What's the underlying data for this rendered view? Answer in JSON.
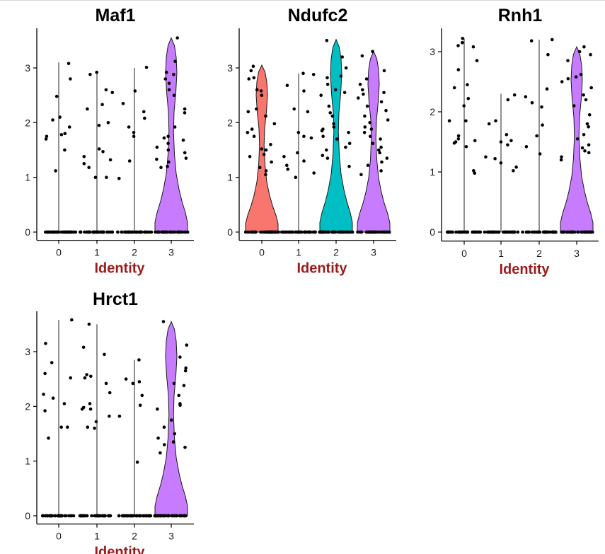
{
  "figure": {
    "style": {
      "background": "#ffffff",
      "axis_color": "#000000",
      "point_color": "#000000",
      "axis_title_color": "#9b1b1b",
      "violin_outline": "#1a1a1a"
    },
    "layout": "2 rows x 3 columns, 4 panels"
  },
  "chart_data": [
    {
      "type": "violin",
      "title": "Maf1",
      "xlabel": "Identity",
      "ylabel": "",
      "categories": [
        "0",
        "1",
        "2",
        "3"
      ],
      "ylim": [
        -0.15,
        3.8
      ],
      "yticks": [
        0,
        1,
        2,
        3
      ],
      "grid": false,
      "legend": "none",
      "series": [
        {
          "category": "0",
          "color": null,
          "max": 3.1,
          "violin": false,
          "points": [
            2.48,
            2.8,
            3.08,
            2.05,
            2.1,
            1.92,
            1.8,
            1.75,
            1.78,
            1.7,
            1.5,
            1.12
          ],
          "zeros": 40
        },
        {
          "category": "1",
          "color": null,
          "max": 2.92,
          "violin": false,
          "points": [
            2.88,
            2.6,
            2.55,
            2.92,
            2.25,
            1.95,
            2.33,
            2.0,
            1.52,
            1.47,
            1.38,
            1.32,
            1.25,
            1.18,
            1.0,
            1.0
          ],
          "zeros": 40
        },
        {
          "category": "2",
          "color": null,
          "max": 3.0,
          "violin": false,
          "points": [
            2.58,
            2.08,
            2.2,
            1.92,
            1.82,
            1.75,
            2.35,
            3.01,
            1.3,
            0.98
          ],
          "zeros": 40
        },
        {
          "category": "3",
          "color": "#c77cff",
          "max": 3.55,
          "violin": true,
          "points": [
            3.55,
            3.12,
            2.88,
            2.92,
            2.6,
            2.72,
            2.5,
            2.8,
            2.25,
            2.18,
            1.92,
            1.75,
            1.68,
            1.72,
            1.55,
            1.5,
            1.62,
            1.45,
            1.35,
            1.33,
            1.28,
            1.2,
            1.18
          ],
          "zeros": 40
        }
      ]
    },
    {
      "type": "violin",
      "title": "Ndufc2",
      "xlabel": "Identity",
      "ylabel": "",
      "categories": [
        "0",
        "1",
        "2",
        "3"
      ],
      "ylim": [
        -0.15,
        3.8
      ],
      "yticks": [
        0,
        1,
        2,
        3
      ],
      "grid": false,
      "legend": "none",
      "series": [
        {
          "category": "0",
          "color": "#f8766d",
          "max": 3.05,
          "violin": true,
          "points": [
            3.03,
            2.95,
            2.8,
            2.82,
            2.6,
            2.58,
            2.5,
            2.2,
            2.25,
            2.12,
            1.98,
            1.88,
            1.82,
            1.75,
            1.6,
            1.52,
            1.5,
            1.42,
            1.38,
            1.28,
            1.18,
            1.12,
            1.05
          ],
          "zeros": 40
        },
        {
          "category": "1",
          "color": null,
          "max": 2.9,
          "violin": false,
          "points": [
            2.88,
            2.9,
            2.58,
            2.68,
            2.2,
            2.25,
            1.75,
            1.82,
            1.72,
            1.45,
            1.38,
            1.3,
            1.22,
            1.15,
            1.08,
            1.0
          ],
          "zeros": 40
        },
        {
          "category": "2",
          "color": "#00bfc4",
          "max": 3.52,
          "violin": true,
          "points": [
            3.5,
            3.2,
            3.0,
            2.85,
            2.82,
            2.6,
            2.7,
            2.55,
            2.5,
            2.3,
            2.18,
            2.12,
            1.98,
            1.92,
            1.88,
            1.85,
            1.82,
            1.75,
            1.7,
            1.62,
            1.55,
            1.5,
            1.4,
            1.35,
            1.2
          ],
          "zeros": 40
        },
        {
          "category": "3",
          "color": "#c77cff",
          "max": 3.3,
          "violin": true,
          "points": [
            3.3,
            3.22,
            2.95,
            2.8,
            2.7,
            2.6,
            2.55,
            2.52,
            2.45,
            2.38,
            2.3,
            2.22,
            2.12,
            2.05,
            2.0,
            1.92,
            1.88,
            1.82,
            1.75,
            1.7,
            1.62,
            1.55,
            1.5,
            1.45,
            1.35,
            1.28,
            1.22,
            1.12,
            1.05
          ],
          "zeros": 40
        }
      ]
    },
    {
      "type": "violin",
      "title": "Rnh1",
      "xlabel": "Identity",
      "ylabel": "",
      "categories": [
        "0",
        "1",
        "2",
        "3"
      ],
      "ylim": [
        -0.15,
        3.55
      ],
      "yticks": [
        0,
        1,
        2,
        3
      ],
      "grid": false,
      "legend": "none",
      "series": [
        {
          "category": "0",
          "color": null,
          "max": 3.22,
          "violin": false,
          "points": [
            3.22,
            3.15,
            3.1,
            3.08,
            2.85,
            2.7,
            2.45,
            2.4,
            2.22,
            2.1,
            1.85,
            1.85,
            1.6,
            1.55,
            1.52,
            1.5,
            1.48,
            1.42,
            1.02,
            0.98
          ],
          "zeros": 40
        },
        {
          "category": "1",
          "color": null,
          "max": 2.3,
          "violin": false,
          "points": [
            2.28,
            2.2,
            1.85,
            1.8,
            1.62,
            1.52,
            1.5,
            1.45,
            1.25,
            1.22,
            1.15,
            1.08,
            1.02
          ],
          "zeros": 40
        },
        {
          "category": "2",
          "color": null,
          "max": 3.2,
          "violin": false,
          "points": [
            3.2,
            3.18,
            2.95,
            2.38,
            2.25,
            2.15,
            2.08,
            1.78,
            1.6,
            1.42,
            1.3
          ],
          "zeros": 40
        },
        {
          "category": "3",
          "color": "#c77cff",
          "max": 3.08,
          "violin": true,
          "points": [
            3.08,
            3.0,
            2.95,
            2.85,
            2.62,
            2.58,
            2.55,
            2.5,
            2.4,
            2.28,
            2.2,
            2.1,
            1.95,
            1.8,
            1.75,
            1.62,
            1.55,
            1.45,
            1.4,
            1.35,
            1.32,
            1.25,
            1.2
          ],
          "zeros": 40
        }
      ]
    },
    {
      "type": "violin",
      "title": "Hrct1",
      "xlabel": "Identity",
      "ylabel": "",
      "categories": [
        "0",
        "1",
        "2",
        "3"
      ],
      "ylim": [
        -0.15,
        3.8
      ],
      "yticks": [
        0,
        1,
        2,
        3
      ],
      "grid": false,
      "legend": "none",
      "series": [
        {
          "category": "0",
          "color": null,
          "max": 3.58,
          "violin": false,
          "points": [
            3.58,
            3.15,
            2.8,
            2.6,
            2.52,
            2.22,
            2.15,
            2.05,
            1.92,
            1.62,
            1.62,
            1.42
          ],
          "zeros": 40
        },
        {
          "category": "1",
          "color": null,
          "max": 3.5,
          "violin": false,
          "points": [
            3.5,
            3.08,
            2.95,
            2.58,
            2.55,
            2.52,
            2.42,
            2.25,
            2.05,
            1.98,
            1.95,
            1.95,
            1.82,
            1.72,
            1.62,
            1.6
          ],
          "zeros": 40
        },
        {
          "category": "2",
          "color": null,
          "max": 2.85,
          "violin": false,
          "points": [
            2.85,
            2.5,
            2.45,
            2.42,
            2.2,
            2.02,
            1.82,
            0.98
          ],
          "zeros": 40
        },
        {
          "category": "3",
          "color": "#c77cff",
          "max": 3.55,
          "violin": true,
          "points": [
            3.55,
            3.12,
            2.9,
            2.7,
            2.65,
            2.42,
            2.38,
            2.2,
            2.05,
            2.02,
            1.95,
            1.75,
            1.62,
            1.5,
            1.42,
            1.35,
            1.3,
            1.25,
            1.15
          ],
          "zeros": 40
        }
      ]
    }
  ]
}
